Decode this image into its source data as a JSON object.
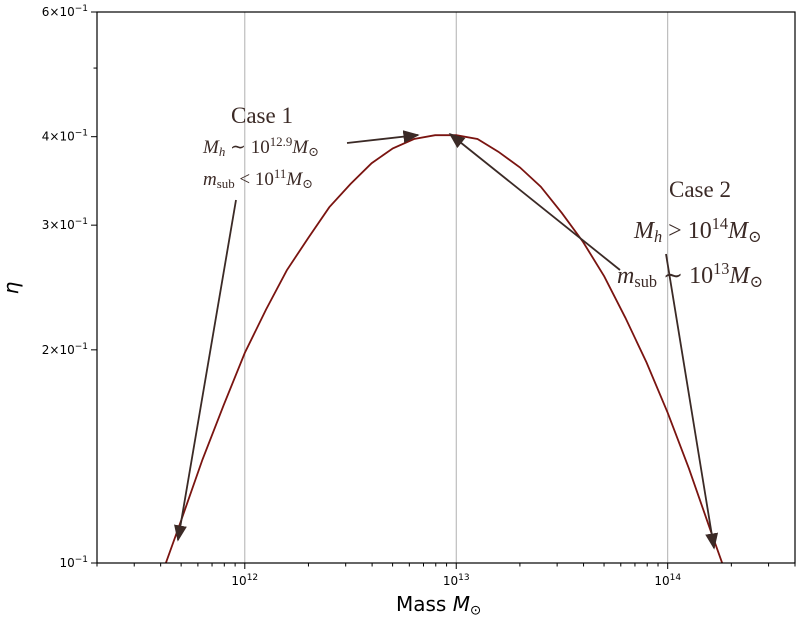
{
  "chart_data": {
    "type": "line",
    "xlabel": "Mass",
    "xlabel_symbol": "M",
    "xlabel_sub": "⊙",
    "ylabel": "η",
    "xscale": "log",
    "yscale": "log",
    "xlim": [
      200000000000.0,
      400000000000000.0
    ],
    "ylim": [
      0.1,
      0.6
    ],
    "grid": "x-major vertical lines",
    "x_ticks": [
      {
        "base": "10",
        "exp": "12",
        "value": 1000000000000.0
      },
      {
        "base": "10",
        "exp": "13",
        "value": 10000000000000.0
      },
      {
        "base": "10",
        "exp": "14",
        "value": 100000000000000.0
      }
    ],
    "y_ticks": [
      {
        "mant": "",
        "base": "10",
        "exp": "−1",
        "value": 0.1
      },
      {
        "mant": "2×",
        "base": "10",
        "exp": "−1",
        "value": 0.2
      },
      {
        "mant": "3×",
        "base": "10",
        "exp": "−1",
        "value": 0.3
      },
      {
        "mant": "4×",
        "base": "10",
        "exp": "−1",
        "value": 0.4
      },
      {
        "mant": "6×",
        "base": "10",
        "exp": "−1",
        "value": 0.6
      }
    ],
    "series": [
      {
        "color": "#7a1410",
        "x": [
          398000000000.0,
          501000000000.0,
          631000000000.0,
          794000000000.0,
          1000000000000.0,
          1260000000000.0,
          1580000000000.0,
          2000000000000.0,
          2510000000000.0,
          3160000000000.0,
          3980000000000.0,
          5010000000000.0,
          6310000000000.0,
          7940000000000.0,
          10000000000000.0,
          12600000000000.0,
          15800000000000.0,
          20000000000000.0,
          25100000000000.0,
          31600000000000.0,
          39800000000000.0,
          50100000000000.0,
          63100000000000.0,
          79400000000000.0,
          100000000000000.0,
          126000000000000.0,
          158000000000000.0,
          200000000000000.0
        ],
        "y": [
          0.095,
          0.115,
          0.14,
          0.167,
          0.198,
          0.228,
          0.259,
          0.288,
          0.318,
          0.343,
          0.367,
          0.385,
          0.397,
          0.402,
          0.402,
          0.397,
          0.381,
          0.362,
          0.34,
          0.312,
          0.284,
          0.254,
          0.222,
          0.192,
          0.163,
          0.136,
          0.112,
          0.092
        ]
      }
    ],
    "annotations": [
      {
        "title": "Case 1",
        "line1": {
          "a": "M",
          "asub": "h",
          "rel": " ∼ 10",
          "exp": "12.9",
          "b": "M",
          "bsub": "⊙"
        },
        "line2": {
          "a": "m",
          "asub": "sub",
          "rel": " < 10",
          "exp": "11",
          "b": "M",
          "bsub": "⊙"
        }
      },
      {
        "title": "Case 2",
        "line1": {
          "a": "M",
          "asub": "h",
          "rel": " > 10",
          "exp": "14",
          "b": "M",
          "bsub": "⊙"
        },
        "line2": {
          "a": "m",
          "asub": "sub",
          "rel": " ∼ 10",
          "exp": "13",
          "b": "M",
          "bsub": "⊙"
        }
      }
    ],
    "annotation_color": "#3b2a26"
  }
}
